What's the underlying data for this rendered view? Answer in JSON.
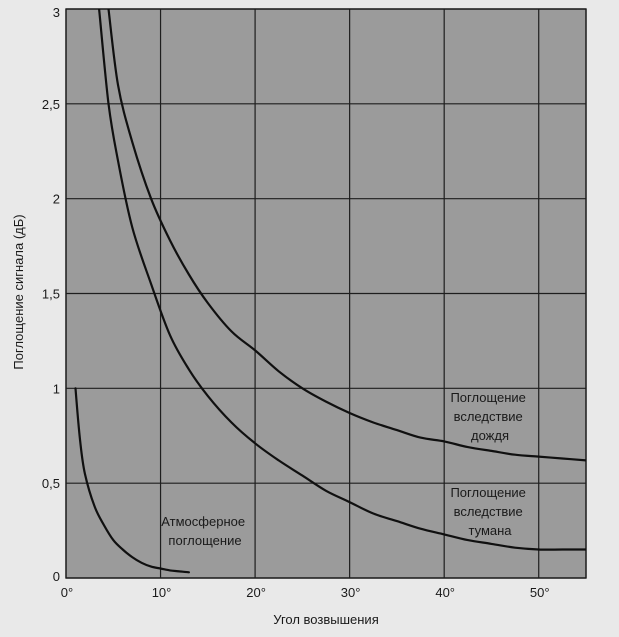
{
  "chart_data": {
    "type": "line",
    "title": "",
    "xlabel": "Угол возвышения",
    "ylabel": "Поглощение сигнала (дБ)",
    "xlim": [
      0,
      55
    ],
    "ylim": [
      0,
      3
    ],
    "x_ticks": [
      0,
      10,
      20,
      30,
      40,
      50
    ],
    "x_tick_labels": [
      "0°",
      "10°",
      "20°",
      "30°",
      "40°",
      "50°"
    ],
    "y_ticks": [
      0,
      0.5,
      1,
      1.5,
      2,
      2.5,
      3
    ],
    "y_tick_labels": [
      "0",
      "0,5",
      "1",
      "1,5",
      "2",
      "2,5",
      "3"
    ],
    "grid": true,
    "series": [
      {
        "name": "Поглощение вследствие дождя",
        "x": [
          4.5,
          5.5,
          7,
          9,
          11,
          13,
          15,
          17.5,
          20,
          22.5,
          25,
          27.5,
          30,
          32.5,
          35,
          37.5,
          40,
          42.5,
          45,
          47.5,
          50,
          52.5,
          55
        ],
        "y": [
          3.0,
          2.6,
          2.3,
          2.0,
          1.78,
          1.6,
          1.45,
          1.3,
          1.2,
          1.09,
          1.0,
          0.93,
          0.87,
          0.82,
          0.78,
          0.74,
          0.72,
          0.69,
          0.67,
          0.65,
          0.64,
          0.63,
          0.62
        ]
      },
      {
        "name": "Поглощение вследствие тумана",
        "x": [
          3.5,
          4.5,
          5.5,
          7,
          9,
          11,
          13,
          15,
          17.5,
          20,
          22.5,
          25,
          27.5,
          30,
          32.5,
          35,
          37.5,
          40,
          42.5,
          45,
          47.5,
          50,
          52.5,
          55
        ],
        "y": [
          3.0,
          2.5,
          2.2,
          1.85,
          1.55,
          1.28,
          1.1,
          0.96,
          0.82,
          0.71,
          0.62,
          0.54,
          0.46,
          0.4,
          0.34,
          0.3,
          0.26,
          0.23,
          0.2,
          0.18,
          0.16,
          0.15,
          0.15,
          0.15
        ]
      },
      {
        "name": "Атмосферное поглощение",
        "x": [
          1,
          1.5,
          2,
          3,
          4,
          5,
          6,
          7,
          8,
          9,
          10,
          11,
          12,
          13
        ],
        "y": [
          1.0,
          0.72,
          0.55,
          0.38,
          0.28,
          0.2,
          0.15,
          0.11,
          0.08,
          0.06,
          0.05,
          0.04,
          0.035,
          0.03
        ]
      }
    ],
    "annotations": [
      {
        "lines": [
          "Поглощение",
          "вследствие",
          "дождя"
        ]
      },
      {
        "lines": [
          "Поглощение",
          "вследствие",
          "тумана"
        ]
      },
      {
        "lines": [
          "Атмосферное",
          "поглощение"
        ]
      }
    ],
    "colors": {
      "plot_background": "#9b9b9b",
      "page_background": "#e9e9e9",
      "grid": "#1e1e1e",
      "curve": "#101010"
    }
  }
}
